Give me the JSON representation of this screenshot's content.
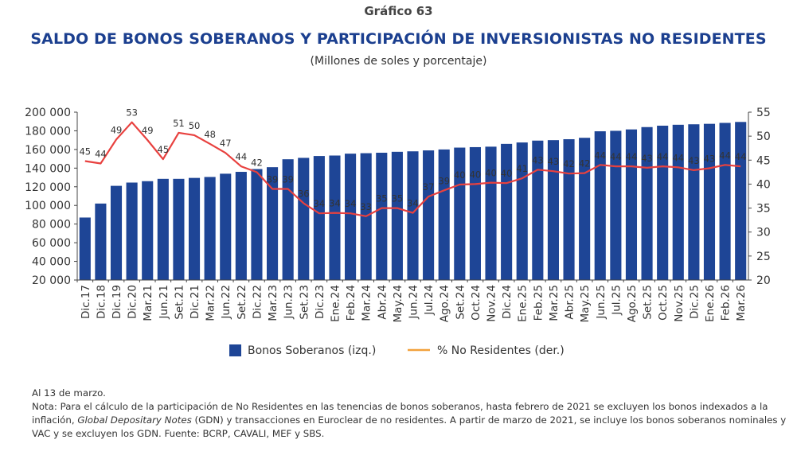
{
  "header": {
    "figure_label": "Gráfico 63",
    "title": "SALDO DE BONOS SOBERANOS Y PARTICIPACIÓN DE INVERSIONISTAS NO RESIDENTES",
    "subtitle": "(Millones de soles y porcentaje)"
  },
  "chart_data": {
    "type": "bar",
    "categories": [
      "Dic.17",
      "Dic.18",
      "Dic.19",
      "Dic.20",
      "Mar.21",
      "Jun.21",
      "Set.21",
      "Dic.21",
      "Mar.22",
      "Jun.22",
      "Set.22",
      "Dic.22",
      "Mar.23",
      "Jun.23",
      "Set.23",
      "Dic.23",
      "Ene.24",
      "Feb.24",
      "Mar.24",
      "Abr.24",
      "May.24",
      "Jun.24",
      "Jul.24",
      "Ago.24",
      "Set.24",
      "Oct.24",
      "Nov.24",
      "Dic.24",
      "Ene.25",
      "Feb.25",
      "Mar.25",
      "Abr.25",
      "May.25",
      "Jun.25",
      "Jul.25",
      "Ago.25",
      "Set.25",
      "Oct.25",
      "Nov.25",
      "Dic.25",
      "Ene.26",
      "Feb.26",
      "Mar.26"
    ],
    "series": [
      {
        "name": "Bonos Soberanos (izq.)",
        "axis": "left",
        "type": "bar",
        "color": "#1e4596",
        "values": [
          87000,
          102000,
          121000,
          124500,
          126000,
          128500,
          128500,
          129500,
          130500,
          134000,
          136000,
          139000,
          141000,
          149500,
          151000,
          153000,
          153500,
          155500,
          156000,
          156500,
          157500,
          158000,
          159000,
          160000,
          162000,
          162500,
          163000,
          166000,
          167500,
          169500,
          170000,
          171000,
          172500,
          179500,
          180000,
          181500,
          184000,
          185500,
          186500,
          187000,
          187500,
          188500,
          189500
        ]
      },
      {
        "name": "% No Residentes (der.)",
        "axis": "right",
        "type": "line",
        "color": "#e8413f",
        "values": [
          44.8,
          44.3,
          49.3,
          52.9,
          49.2,
          45.2,
          50.7,
          50.2,
          48.4,
          46.5,
          43.7,
          42.5,
          39.0,
          39.0,
          36.0,
          33.9,
          34.0,
          33.9,
          33.3,
          35.0,
          35.0,
          34.0,
          37.4,
          38.7,
          39.9,
          40.0,
          40.3,
          40.2,
          41.2,
          43.0,
          42.7,
          42.2,
          42.3,
          44.0,
          43.7,
          43.7,
          43.4,
          43.7,
          43.5,
          42.9,
          43.3,
          44.0,
          43.7
        ]
      }
    ],
    "line_labels": [
      "45",
      "44",
      "49",
      "53",
      "49",
      "45",
      "51",
      "50",
      "48",
      "47",
      "44",
      "42",
      "39",
      "39",
      "36",
      "34",
      "34",
      "34",
      "33",
      "35",
      "35",
      "34",
      "37",
      "39",
      "40",
      "40",
      "40",
      "40",
      "41",
      "43",
      "43",
      "42",
      "42",
      "44",
      "44",
      "44",
      "43",
      "44",
      "44",
      "43",
      "43",
      "44",
      "44"
    ],
    "left_axis": {
      "min": 20000,
      "max": 200000,
      "step": 20000,
      "ticks": [
        "20 000",
        "40 000",
        "60 000",
        "80 000",
        "100 000",
        "120 000",
        "140 000",
        "160 000",
        "180 000",
        "200 000"
      ]
    },
    "right_axis": {
      "min": 20,
      "max": 55,
      "step": 5,
      "ticks": [
        "20",
        "25",
        "30",
        "35",
        "40",
        "45",
        "50",
        "55"
      ]
    },
    "legend_position": "bottom-center"
  },
  "legend": {
    "bars_label": "Bonos Soberanos (izq.)",
    "line_label": "% No Residentes (der.)",
    "line_color": "#f2a13c"
  },
  "notes": {
    "date": "Al 13 de marzo.",
    "note_part1": "Nota: Para el cálculo de la participación de No Residentes en las tenencias de bonos soberanos, hasta febrero de 2021 se excluyen los bonos indexados a la inflación, ",
    "note_italic": "Global Depositary Notes",
    "note_part2": " (GDN) y transacciones en Euroclear de no residentes. A partir de marzo de 2021, se incluye los bonos soberanos nominales y VAC y se excluyen los GDN. Fuente: BCRP, CAVALI, MEF y SBS."
  }
}
